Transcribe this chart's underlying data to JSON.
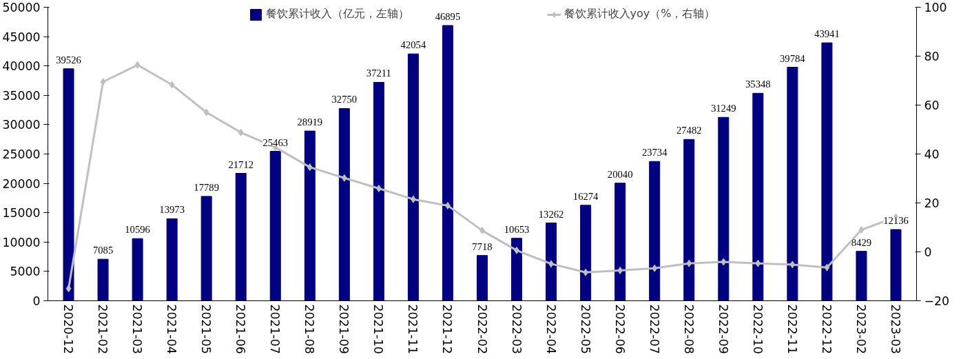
{
  "chart_data": {
    "type": "bar",
    "categories": [
      "2020-12",
      "2021-02",
      "2021-03",
      "2021-04",
      "2021-05",
      "2021-06",
      "2021-07",
      "2021-08",
      "2021-09",
      "2021-10",
      "2021-11",
      "2021-12",
      "2022-02",
      "2022-03",
      "2022-04",
      "2022-05",
      "2022-06",
      "2022-07",
      "2022-08",
      "2022-09",
      "2022-10",
      "2022-11",
      "2022-12",
      "2023-02",
      "2023-03"
    ],
    "series": [
      {
        "name": "餐饮累计收入（亿元，左轴）",
        "color": "#000080",
        "data_labels": true,
        "values": [
          39526,
          7085,
          10596,
          13973,
          17789,
          21712,
          25463,
          28919,
          32750,
          37211,
          42054,
          46895,
          7718,
          10653,
          13262,
          16274,
          20040,
          23734,
          27482,
          31249,
          35348,
          39784,
          43941,
          8429,
          12136
        ]
      },
      {
        "name": "餐饮累计收入yoy（%，右轴）",
        "type": "line",
        "axis": "y2",
        "color": "#bfbfbf",
        "marker": "diamond",
        "values": [
          -15,
          69.5,
          76.4,
          68.3,
          57,
          48.8,
          42.7,
          34.6,
          30.2,
          25.9,
          21.5,
          18.9,
          8.7,
          0.6,
          -4.9,
          -8.4,
          -7.6,
          -6.7,
          -4.7,
          -4.1,
          -4.7,
          -5.2,
          -6.4,
          9,
          14.2
        ]
      }
    ],
    "ylim": [
      0,
      50000
    ],
    "yticks": [
      0,
      5000,
      10000,
      15000,
      20000,
      25000,
      30000,
      35000,
      40000,
      45000,
      50000
    ],
    "y2lim": [
      -20,
      100
    ],
    "y2ticks": [
      -20,
      0,
      20,
      40,
      60,
      80,
      100
    ],
    "grid": false,
    "legend": "top"
  }
}
